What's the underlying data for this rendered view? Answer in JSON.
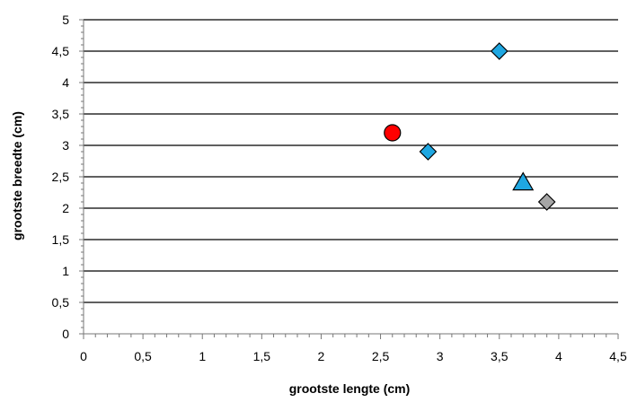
{
  "chart_data": {
    "type": "scatter",
    "title": "",
    "xlabel": "grootste lengte (cm)",
    "ylabel": "grootste breedte (cm)",
    "xlim": [
      0,
      4.5
    ],
    "ylim": [
      0,
      5
    ],
    "x_ticks": [
      "0",
      "0,5",
      "1",
      "1,5",
      "2",
      "2,5",
      "3",
      "3,5",
      "4",
      "4,5"
    ],
    "y_ticks": [
      "0",
      "0,5",
      "1",
      "1,5",
      "2",
      "2,5",
      "3",
      "3,5",
      "4",
      "4,5",
      "5"
    ],
    "grid": "horizontal",
    "legend": "none",
    "series": [
      {
        "marker": "diamond",
        "color": "#1fa7e1",
        "points": [
          {
            "x": 3.5,
            "y": 4.5
          },
          {
            "x": 2.9,
            "y": 2.9
          }
        ]
      },
      {
        "marker": "circle",
        "color": "#ff0000",
        "points": [
          {
            "x": 2.6,
            "y": 3.2
          }
        ]
      },
      {
        "marker": "triangle",
        "color": "#1fa7e1",
        "points": [
          {
            "x": 3.7,
            "y": 2.4
          }
        ]
      },
      {
        "marker": "diamond",
        "color": "#a6a6a6",
        "points": [
          {
            "x": 3.9,
            "y": 2.1
          }
        ]
      }
    ]
  }
}
